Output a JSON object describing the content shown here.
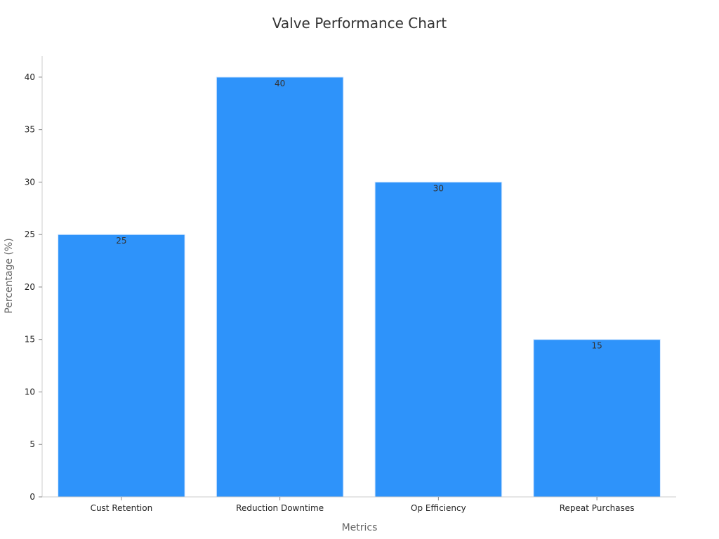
{
  "chart_data": {
    "type": "bar",
    "title": "Valve Performance Chart",
    "xlabel": "Metrics",
    "ylabel": "Percentage (%)",
    "categories": [
      "Cust Retention",
      "Reduction Downtime",
      "Op Efficiency",
      "Repeat Purchases"
    ],
    "values": [
      25,
      40,
      30,
      15
    ],
    "data_labels": [
      "25",
      "40",
      "30",
      "15"
    ],
    "ylim": [
      0,
      42
    ],
    "yticks": [
      0,
      5,
      10,
      15,
      20,
      25,
      30,
      35,
      40
    ],
    "grid": false,
    "legend": "none",
    "colors": {
      "bar": "#2e93fa",
      "axis": "#cccccc",
      "text": "#333333"
    }
  }
}
